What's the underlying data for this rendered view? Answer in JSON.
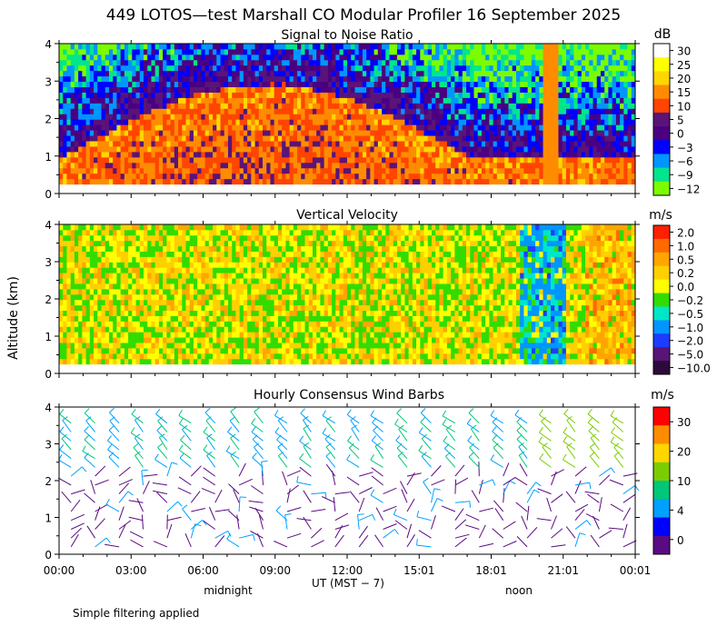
{
  "chart_data": [
    {
      "type": "heatmap",
      "title": "Signal to Noise Ratio",
      "unit": "dB",
      "ylim": [
        0,
        4
      ],
      "y_ticks": [
        "0",
        "1",
        "2",
        "3",
        "4"
      ],
      "colorbar": {
        "labels": [
          "30",
          "25",
          "20",
          "15",
          "10",
          "5",
          "0",
          "−3",
          "−6",
          "−9",
          "−12"
        ],
        "colors": [
          "#ffffff",
          "#ffff00",
          "#ffd700",
          "#ff8c00",
          "#ff4500",
          "#5a1478",
          "#4b0082",
          "#0000ff",
          "#0096ff",
          "#00e68c",
          "#7cfc00"
        ]
      }
    },
    {
      "type": "heatmap",
      "title": "Vertical Velocity",
      "unit": "m/s",
      "ylim": [
        0,
        4
      ],
      "y_ticks": [
        "0",
        "1",
        "2",
        "3",
        "4"
      ],
      "colorbar": {
        "labels": [
          "2.0",
          "1.0",
          "0.5",
          "0.2",
          "0.0",
          "−0.2",
          "−0.5",
          "−1.0",
          "−2.0",
          "−5.0",
          "−10.0"
        ],
        "colors": [
          "#ff2000",
          "#ff6a00",
          "#ffa500",
          "#ffd000",
          "#ffff00",
          "#32dc00",
          "#00e6c8",
          "#0096ff",
          "#1e3cff",
          "#5a1478",
          "#2d0a3c"
        ]
      }
    },
    {
      "type": "barbs",
      "title": "Hourly Consensus Wind Barbs",
      "unit": "m/s",
      "ylim": [
        0,
        4
      ],
      "y_ticks": [
        "0",
        "1",
        "2",
        "3",
        "4"
      ],
      "colorbar": {
        "labels": [
          "30",
          "20",
          "10",
          "4",
          "0"
        ],
        "colors": [
          "#ff0000",
          "#ff8c00",
          "#ffd700",
          "#7ccd00",
          "#00c878",
          "#00a0ff",
          "#0000ff",
          "#5a0a82"
        ]
      }
    }
  ],
  "header": {
    "title": "449 LOTOS—test Marshall CO Modular Profiler 16 September 2025"
  },
  "axes": {
    "ylabel": "Altitude (km)",
    "x_ticks": [
      "00:00",
      "03:00",
      "06:00",
      "09:00",
      "12:00",
      "15:01",
      "18:01",
      "21:01",
      "00:01"
    ],
    "xlabel": "UT  (MST − 7)",
    "midnight_label": "midnight",
    "noon_label": "noon"
  },
  "footer": {
    "note": "Simple filtering applied"
  }
}
